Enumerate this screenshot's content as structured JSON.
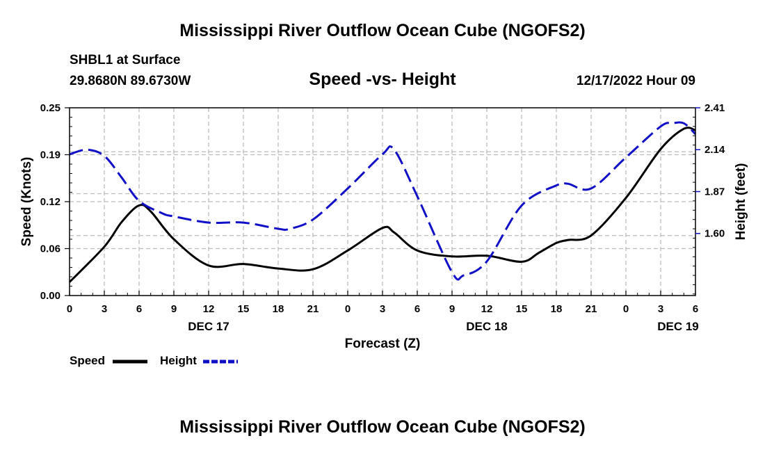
{
  "header": {
    "title": "Mississippi River Outflow Ocean Cube (NGOFS2)",
    "station": "SHBL1 at Surface",
    "coords": "29.8680N  89.6730W",
    "subtitle": "Speed -vs- Height",
    "datetime": "12/17/2022 Hour 09"
  },
  "footer": {
    "title": "Mississippi River Outflow Ocean Cube (NGOFS2)"
  },
  "legend": {
    "speed": "Speed",
    "height": "Height"
  },
  "colors": {
    "speed": "#000000",
    "height": "#1010c8",
    "grid": "#bbbbbb"
  },
  "chart_data": {
    "type": "line",
    "title": "Speed -vs- Height",
    "xlabel": "Forecast (Z)",
    "ylabel": "Speed (Knots)",
    "y2label": "Height (feet)",
    "xlim": [
      0,
      54
    ],
    "ylim": [
      0,
      0.25
    ],
    "y2lim": [
      1.2,
      2.41
    ],
    "x_ticks": [
      0,
      3,
      6,
      9,
      12,
      15,
      18,
      21,
      24,
      27,
      30,
      33,
      36,
      39,
      42,
      45,
      48,
      51,
      54
    ],
    "x_tick_labels": [
      "0",
      "3",
      "6",
      "9",
      "12",
      "15",
      "18",
      "21",
      "0",
      "3",
      "6",
      "9",
      "12",
      "15",
      "18",
      "21",
      "0",
      "3",
      "6"
    ],
    "y_ticks": [
      0.0,
      0.0625,
      0.125,
      0.1875,
      0.25
    ],
    "y_tick_labels": [
      "0.00",
      "0.06",
      "0.12",
      "0.19",
      "0.25"
    ],
    "y2_ticks": [
      1.6,
      1.87,
      2.14,
      2.41
    ],
    "y2_tick_labels": [
      "1.60",
      "1.87",
      "2.14",
      "2.41"
    ],
    "day_labels": [
      {
        "x": 12,
        "label": "DEC 17"
      },
      {
        "x": 36,
        "label": "DEC 18"
      },
      {
        "x": 52.5,
        "label": "DEC 19"
      }
    ],
    "series": [
      {
        "name": "Speed",
        "axis": "left",
        "x": [
          0,
          3,
          4.5,
          6,
          7,
          9,
          12,
          15,
          18,
          21,
          24,
          27,
          28,
          30,
          33,
          36,
          39,
          40.5,
          42,
          43,
          45,
          48,
          51,
          53,
          54
        ],
        "values": [
          0.018,
          0.065,
          0.098,
          0.12,
          0.112,
          0.075,
          0.04,
          0.042,
          0.036,
          0.035,
          0.06,
          0.09,
          0.084,
          0.06,
          0.052,
          0.053,
          0.045,
          0.057,
          0.07,
          0.074,
          0.08,
          0.13,
          0.195,
          0.222,
          0.22
        ]
      },
      {
        "name": "Height",
        "axis": "right",
        "x": [
          0,
          1.5,
          3,
          4.5,
          6,
          8,
          9,
          12,
          15,
          18,
          19,
          21,
          24,
          27,
          28,
          30,
          33,
          34,
          36,
          39,
          42,
          43,
          45,
          48,
          51,
          52,
          53,
          54
        ],
        "values": [
          2.11,
          2.14,
          2.1,
          1.96,
          1.81,
          1.73,
          1.71,
          1.67,
          1.67,
          1.63,
          1.63,
          1.69,
          1.89,
          2.11,
          2.14,
          1.84,
          1.35,
          1.33,
          1.42,
          1.78,
          1.91,
          1.92,
          1.89,
          2.09,
          2.29,
          2.31,
          2.31,
          2.24
        ]
      }
    ]
  }
}
